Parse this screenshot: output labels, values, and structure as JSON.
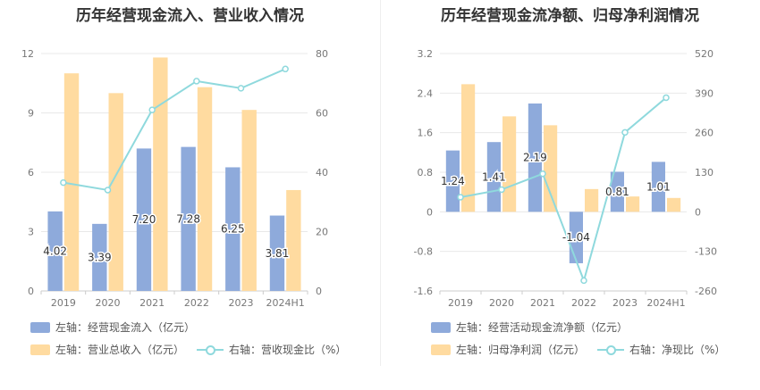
{
  "colors": {
    "bar_blue": "#8eaadb",
    "bar_orange": "#ffdba0",
    "line": "#8fd9dd",
    "grid": "#e8e8e8",
    "axis_text": "#777777"
  },
  "chart_data": [
    {
      "type": "bar",
      "title": "历年经营现金流入、营业收入情况",
      "categories": [
        "2019",
        "2020",
        "2021",
        "2022",
        "2023",
        "2024H1"
      ],
      "y_left": {
        "ticks": [
          "0",
          "3",
          "6",
          "9",
          "12"
        ],
        "ylim": [
          0,
          12
        ]
      },
      "y_right": {
        "ticks": [
          "0",
          "20",
          "40",
          "60",
          "80"
        ],
        "ylim": [
          0,
          80
        ]
      },
      "series": [
        {
          "name": "左轴：经营现金流入（亿元）",
          "kind": "bar",
          "axis": "left",
          "color": "#8eaadb",
          "values": [
            4.02,
            3.39,
            7.2,
            7.28,
            6.25,
            3.81
          ],
          "labels": [
            "4.02",
            "3.39",
            "7.20",
            "7.28",
            "6.25",
            "3.81"
          ]
        },
        {
          "name": "左轴：营业总收入（亿元）",
          "kind": "bar",
          "axis": "left",
          "color": "#ffdba0",
          "values": [
            11.0,
            10.0,
            11.8,
            10.3,
            9.15,
            5.1
          ]
        },
        {
          "name": "右轴：营收现金比（%）",
          "kind": "line",
          "axis": "right",
          "color": "#8fd9dd",
          "values": [
            36.5,
            34.0,
            61.0,
            70.7,
            68.3,
            74.8
          ]
        }
      ],
      "grid": true,
      "legend_position": "bottom"
    },
    {
      "type": "bar",
      "title": "历年经营现金流净额、归母净利润情况",
      "categories": [
        "2019",
        "2020",
        "2021",
        "2022",
        "2023",
        "2024H1"
      ],
      "y_left": {
        "ticks": [
          "-1.6",
          "-0.8",
          "0",
          "0.8",
          "1.6",
          "2.4",
          "3.2"
        ],
        "ylim": [
          -1.6,
          3.2
        ]
      },
      "y_right": {
        "ticks": [
          "-260",
          "-130",
          "0",
          "130",
          "260",
          "390",
          "520"
        ],
        "ylim": [
          -260,
          520
        ]
      },
      "series": [
        {
          "name": "左轴：经营活动现金流净额（亿元）",
          "kind": "bar",
          "axis": "left",
          "color": "#8eaadb",
          "values": [
            1.24,
            1.41,
            2.19,
            -1.04,
            0.81,
            1.01
          ],
          "labels": [
            "1.24",
            "1.41",
            "2.19",
            "-1.04",
            "0.81",
            "1.01"
          ]
        },
        {
          "name": "左轴：归母净利润（亿元）",
          "kind": "bar",
          "axis": "left",
          "color": "#ffdba0",
          "values": [
            2.58,
            1.93,
            1.75,
            0.46,
            0.31,
            0.28
          ]
        },
        {
          "name": "右轴：净现比（%）",
          "kind": "line",
          "axis": "right",
          "color": "#8fd9dd",
          "values": [
            48,
            73,
            125,
            -226,
            261,
            375
          ]
        }
      ],
      "grid": true,
      "legend_position": "bottom"
    }
  ]
}
